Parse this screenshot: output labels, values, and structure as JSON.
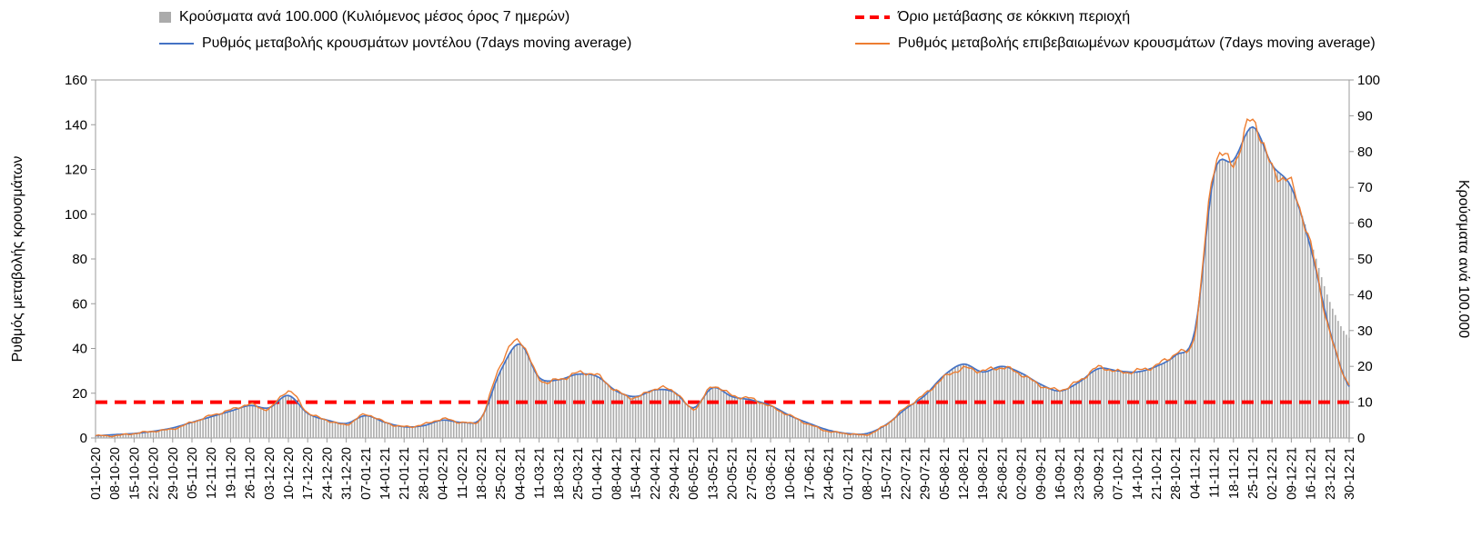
{
  "chart_data": {
    "type": "bar",
    "title": "",
    "left_axis": {
      "label": "Ρυθμός μεταβολής κρουσμάτων",
      "min": 0,
      "max": 160,
      "step": 20
    },
    "right_axis": {
      "label": "Κρούσματα ανά 100.000",
      "min": 0,
      "max": 100,
      "step": 10
    },
    "threshold": {
      "label": "Όριο μετάβασης σε κόκκινη περιοχή",
      "value_left_axis": 16,
      "value_right_axis": 10,
      "color": "#ff0000"
    },
    "x_tick_labels": [
      "01-10-20",
      "08-10-20",
      "15-10-20",
      "22-10-20",
      "29-10-20",
      "05-11-20",
      "12-11-20",
      "19-11-20",
      "26-11-20",
      "03-12-20",
      "10-12-20",
      "17-12-20",
      "24-12-20",
      "31-12-20",
      "07-01-21",
      "14-01-21",
      "21-01-21",
      "28-01-21",
      "04-02-21",
      "11-02-21",
      "18-02-21",
      "25-02-21",
      "04-03-21",
      "11-03-21",
      "18-03-21",
      "25-03-21",
      "01-04-21",
      "08-04-21",
      "15-04-21",
      "22-04-21",
      "29-04-21",
      "06-05-21",
      "13-05-21",
      "20-05-21",
      "27-05-21",
      "03-06-21",
      "10-06-21",
      "17-06-21",
      "24-06-21",
      "01-07-21",
      "08-07-21",
      "15-07-21",
      "22-07-21",
      "29-07-21",
      "05-08-21",
      "12-08-21",
      "19-08-21",
      "26-08-21",
      "02-09-21",
      "09-09-21",
      "16-09-21",
      "23-09-21",
      "30-09-21",
      "07-10-21",
      "14-10-21",
      "21-10-21",
      "28-10-21",
      "04-11-21",
      "11-11-21",
      "18-11-21",
      "25-11-21",
      "02-12-21",
      "09-12-21",
      "16-12-21",
      "23-12-21",
      "30-12-21"
    ],
    "series": [
      {
        "name": "Κρούσματα ανά 100.000 (Κυλιόμενος μέσος όρος 7 ημερών)",
        "type": "bar",
        "axis": "right",
        "color": "#ababab",
        "values": [
          0.6,
          0.9,
          1.3,
          1.9,
          2.8,
          4.4,
          5.9,
          7.5,
          9.1,
          8.4,
          11.9,
          6.9,
          5,
          4.1,
          6.3,
          4.4,
          3.1,
          3.4,
          5,
          4.4,
          5.6,
          18.8,
          26.3,
          16.9,
          16.3,
          17.8,
          17.2,
          13.1,
          11.6,
          13.4,
          12.8,
          8.4,
          14.1,
          11.6,
          10.6,
          9.1,
          6.3,
          4.1,
          2.2,
          1.3,
          1.3,
          3.8,
          8.1,
          11.9,
          17.5,
          20.6,
          18.4,
          20,
          18.1,
          15,
          13.1,
          15.6,
          19.4,
          18.8,
          18.4,
          20,
          23.1,
          30,
          73.8,
          77.5,
          86.9,
          76.3,
          70,
          55,
          38,
          28
        ]
      },
      {
        "name": "Ρυθμός μεταβολής κρουσμάτων μοντέλου (7days moving average)",
        "type": "line",
        "axis": "left",
        "color": "#4472c4",
        "values": [
          1,
          1.5,
          2,
          3,
          4.5,
          7,
          9.5,
          12,
          14.5,
          13.5,
          19,
          11,
          8,
          6.5,
          10,
          7,
          5,
          5.5,
          8,
          7,
          9,
          30,
          42,
          27,
          26,
          28.5,
          27.5,
          21,
          18.5,
          21.5,
          20.5,
          13.5,
          22.5,
          18.5,
          17,
          14.5,
          10,
          6.5,
          3.5,
          2,
          2,
          6,
          13,
          19,
          28,
          33,
          29.5,
          32,
          29,
          24,
          21,
          25,
          31,
          30,
          29.5,
          32,
          37,
          48,
          118,
          124,
          139,
          122,
          112,
          85,
          48,
          23
        ]
      },
      {
        "name": "Ρυθμός μεταβολής επιβεβαιωμένων κρουσμάτων (7days moving average)",
        "type": "line",
        "axis": "left",
        "color": "#ed7d31",
        "values": [
          1,
          1,
          2,
          3,
          4,
          7,
          10,
          12.5,
          15,
          13,
          21,
          11.5,
          8,
          6,
          10.5,
          7,
          5,
          6,
          8.5,
          7,
          9,
          33,
          43.5,
          26.5,
          26,
          29,
          28,
          21,
          18,
          22,
          21,
          13,
          23,
          19,
          17.5,
          14,
          10,
          6,
          3,
          2,
          1.5,
          6,
          13.5,
          19.5,
          27,
          31,
          30,
          31.5,
          28.5,
          23.5,
          21.5,
          25.5,
          31.5,
          29.5,
          30,
          32.5,
          38,
          47,
          122,
          123,
          142,
          120,
          113,
          86,
          47,
          24
        ]
      }
    ],
    "left_ticks": [
      "0",
      "20",
      "40",
      "60",
      "80",
      "100",
      "120",
      "140",
      "160"
    ],
    "right_ticks": [
      "0",
      "10",
      "20",
      "30",
      "40",
      "50",
      "60",
      "70",
      "80",
      "90",
      "100"
    ]
  }
}
